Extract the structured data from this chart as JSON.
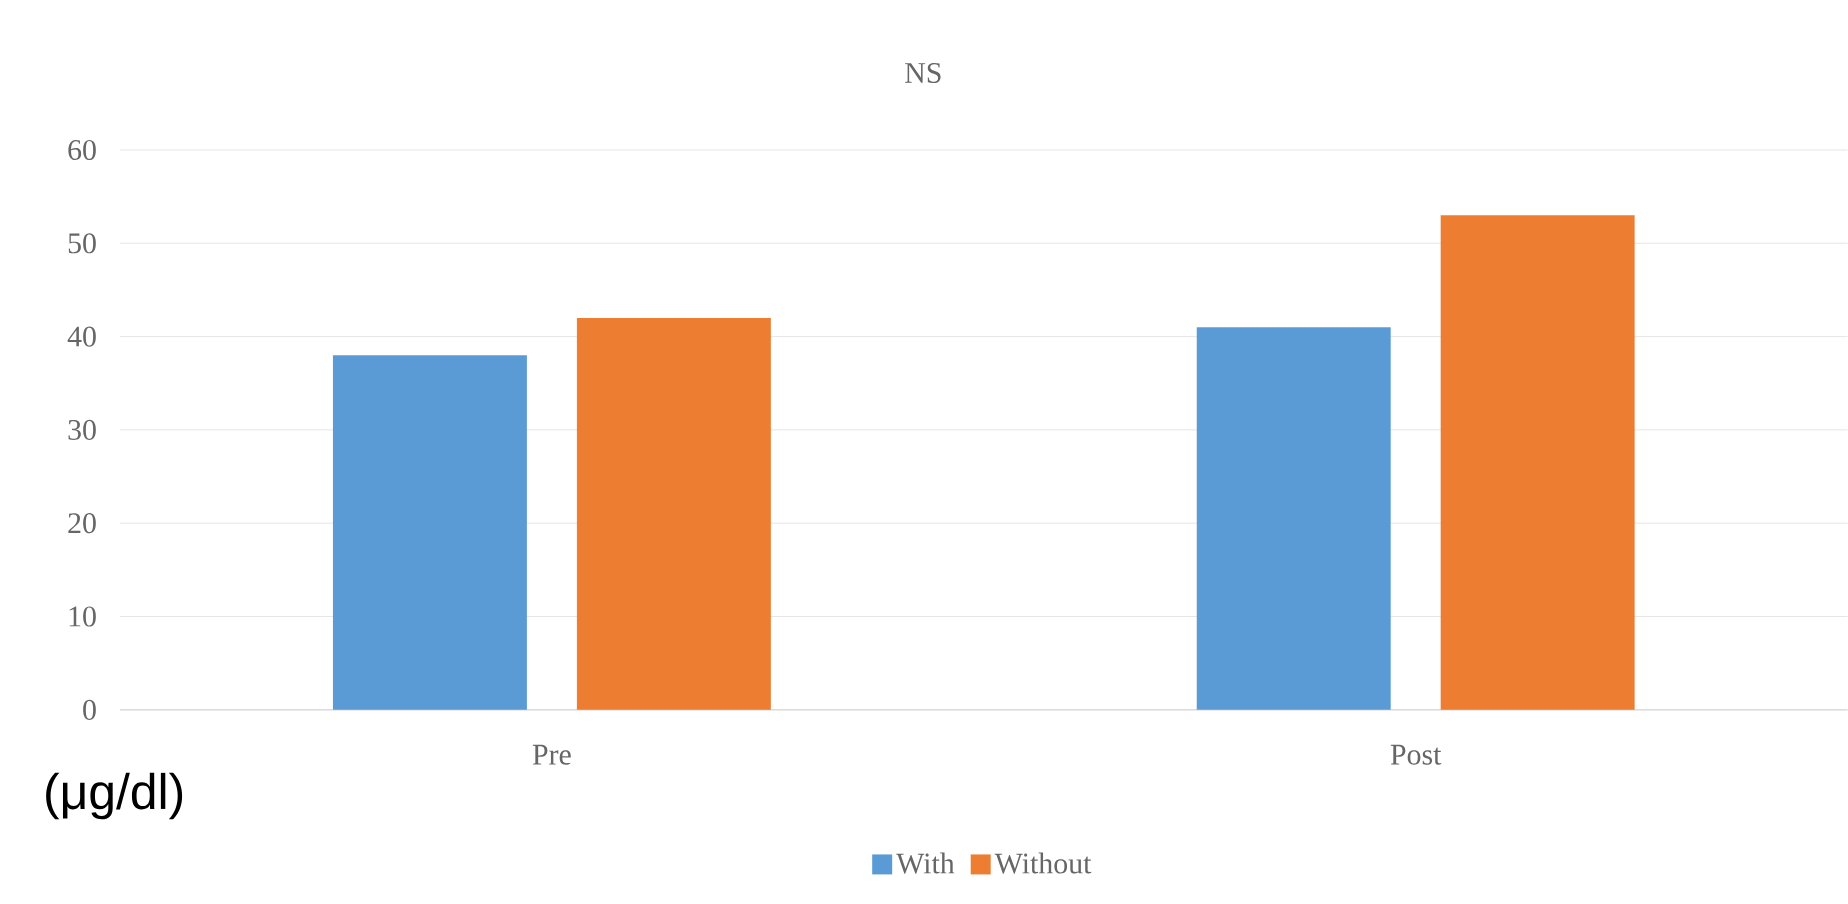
{
  "chart_data": {
    "type": "bar",
    "title": "NS",
    "ylabel": "(μg/dl)",
    "categories": [
      "Pre",
      "Post"
    ],
    "series": [
      {
        "name": "With",
        "color": "#5b9bd5",
        "values": [
          38,
          41
        ]
      },
      {
        "name": "Without",
        "color": "#ed7d31",
        "values": [
          42,
          53
        ]
      }
    ],
    "ylim": [
      0,
      60
    ],
    "yticks": [
      0,
      10,
      20,
      30,
      40,
      50,
      60
    ],
    "grid": "y",
    "legend": "bottom"
  }
}
